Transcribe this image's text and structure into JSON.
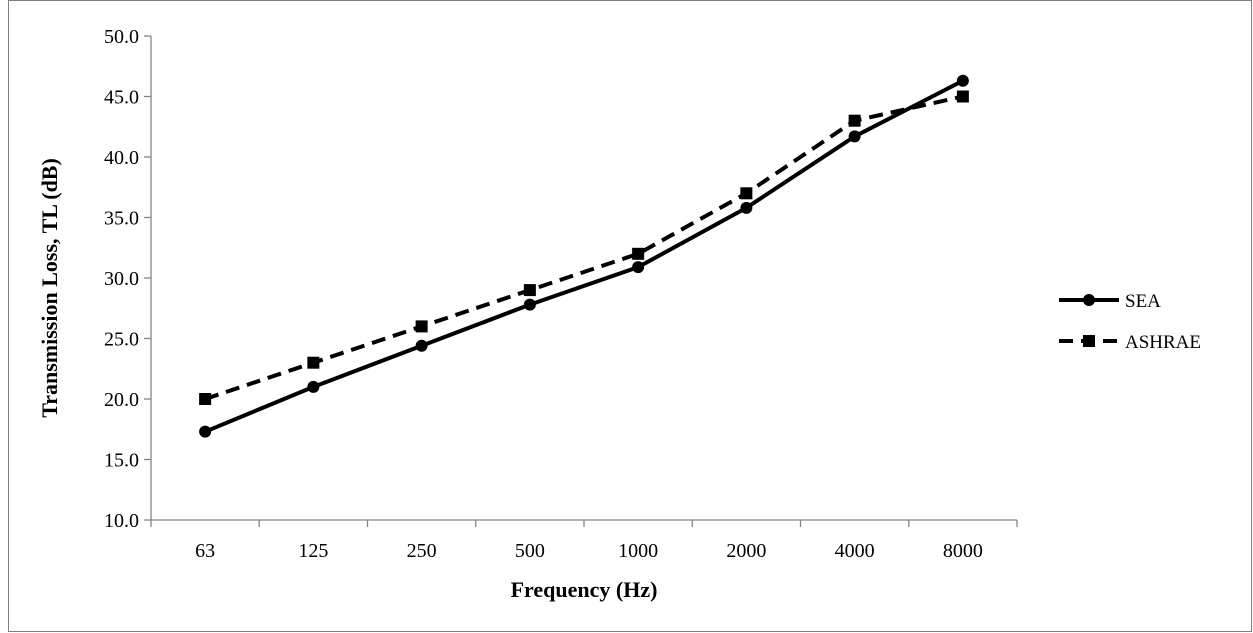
{
  "chart_data": {
    "type": "line",
    "title": "",
    "xlabel": "Frequency (Hz)",
    "ylabel": "Transmission Loss, TL (dB)",
    "categories": [
      "63",
      "125",
      "250",
      "500",
      "1000",
      "2000",
      "4000",
      "8000"
    ],
    "ylim": [
      10.0,
      50.0
    ],
    "ytick_step": 5.0,
    "yticks": [
      "10.0",
      "15.0",
      "20.0",
      "25.0",
      "30.0",
      "35.0",
      "40.0",
      "45.0",
      "50.0"
    ],
    "grid": false,
    "legend_position": "right",
    "series": [
      {
        "name": "SEA",
        "values": [
          17.3,
          21.0,
          24.4,
          27.8,
          30.9,
          35.8,
          41.7,
          46.3
        ],
        "color": "#000000",
        "dash": "solid",
        "marker": "circle"
      },
      {
        "name": "ASHRAE",
        "values": [
          20.0,
          23.0,
          26.0,
          29.0,
          32.0,
          37.0,
          43.0,
          45.0
        ],
        "color": "#000000",
        "dash": "dashed",
        "marker": "square"
      }
    ]
  }
}
